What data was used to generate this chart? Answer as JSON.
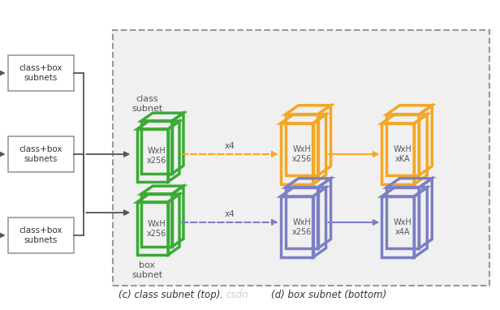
{
  "bg_color": "#f5f5f5",
  "fig_bg": "#ffffff",
  "green": "#3aaa35",
  "orange": "#f5a623",
  "blue_purple": "#7b7fc4",
  "gray": "#888888",
  "dark_gray": "#555555",
  "text_color": "#555555",
  "caption": "(c) class subnet (top).  csdn(d) box subnet (bottom)",
  "caption_color": "#333333",
  "caption_highlight": "#aaaaaa",
  "left_boxes": [
    "class+box\nsubnets",
    "class+box\nsubnets",
    "class+box\nsubnets"
  ],
  "class_label": "class\nsubnet",
  "box_label": "box\nsubnet",
  "green_text_top": [
    "WxH\nx256"
  ],
  "green_text_bot": [
    "WxH\nx256"
  ],
  "orange_text1": "WxH\nx256",
  "orange_text2": "WxH\nxKA",
  "blue_text1": "WxH\nx256",
  "blue_text2": "WxH\nx4A",
  "x4_top": "x4",
  "x4_bot": "x4"
}
